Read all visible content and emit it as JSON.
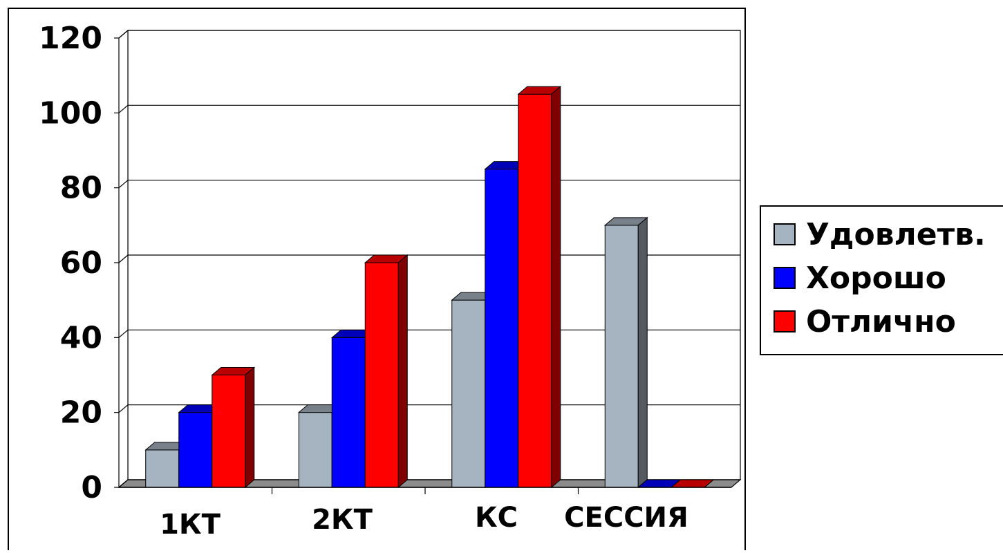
{
  "chart_data": {
    "type": "bar",
    "categories": [
      "1КТ",
      "2КТ",
      "КС",
      "СЕССИЯ"
    ],
    "series": [
      {
        "name": "Удовлетв.",
        "values": [
          10,
          20,
          50,
          70
        ]
      },
      {
        "name": "Хорошо",
        "values": [
          20,
          40,
          85,
          0
        ]
      },
      {
        "name": "Отлично",
        "values": [
          30,
          60,
          105,
          0
        ]
      }
    ],
    "colors": [
      "#A6B3C0",
      "#0000FF",
      "#FF0000"
    ],
    "ylim": [
      0,
      120
    ],
    "yticks": [
      "0",
      "20",
      "40",
      "60",
      "80",
      "100",
      "120"
    ],
    "grid": true,
    "legend": "right",
    "style": "3d-clustered-column"
  }
}
